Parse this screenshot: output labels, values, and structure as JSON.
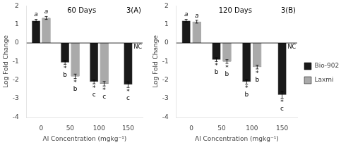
{
  "chart_data": [
    {
      "type": "bar",
      "title": "60 Days",
      "subtitle": "3(A)",
      "x_label": "Al Concentration (mgkg⁻¹)",
      "y_label": "Log Fold Change",
      "categories": [
        "0",
        "50",
        "100",
        "150"
      ],
      "series": [
        {
          "name": "Bio-902",
          "color": "#1a1a1a",
          "values": [
            1.2,
            -1.05,
            -2.1,
            -2.25
          ],
          "errors": [
            0.07,
            0.1,
            0.1,
            0.15
          ]
        },
        {
          "name": "Laxmi",
          "color": "#aaaaaa",
          "values": [
            1.35,
            -1.8,
            -2.2,
            null
          ],
          "errors": [
            0.08,
            0.12,
            0.12,
            null
          ]
        }
      ],
      "annotations": [
        {
          "text": "a",
          "series": "Bio-902",
          "category": "0",
          "position": "above"
        },
        {
          "text": "a",
          "series": "Laxmi",
          "category": "0",
          "position": "above"
        },
        {
          "text": "*\nb",
          "series": "Bio-902",
          "category": "50",
          "position": "below"
        },
        {
          "text": "*\nc",
          "series": "Bio-902",
          "category": "100",
          "position": "below"
        },
        {
          "text": "*\nc",
          "series": "Bio-902",
          "category": "150",
          "position": "below"
        },
        {
          "text": "*\nb",
          "series": "Laxmi",
          "category": "50",
          "position": "below"
        },
        {
          "text": "*\nc",
          "series": "Laxmi",
          "category": "100",
          "position": "below"
        },
        {
          "text": "NC",
          "category": "150"
        }
      ],
      "ylim": [
        -4,
        2
      ],
      "yticks": [
        -4,
        -3,
        -2,
        -1,
        0,
        1,
        2
      ],
      "grid": false
    },
    {
      "type": "bar",
      "title": "120 Days",
      "subtitle": "3(B)",
      "x_label": "Al Concentration (mgkg⁻¹)",
      "y_label": "Log Fold Change",
      "categories": [
        "0",
        "50",
        "100",
        "150"
      ],
      "series": [
        {
          "name": "Bio-902",
          "color": "#1a1a1a",
          "values": [
            1.2,
            -0.9,
            -2.1,
            -2.8
          ],
          "errors": [
            0.07,
            0.1,
            0.12,
            0.18
          ]
        },
        {
          "name": "Laxmi",
          "color": "#aaaaaa",
          "values": [
            1.15,
            -1.0,
            -1.3,
            null
          ],
          "errors": [
            0.08,
            0.1,
            0.1,
            null
          ]
        }
      ],
      "annotations": [
        {
          "text": "a",
          "series": "Bio-902",
          "category": "0",
          "position": "above"
        },
        {
          "text": "a",
          "series": "Laxmi",
          "category": "0",
          "position": "above"
        },
        {
          "text": "*\nb",
          "series": "Bio-902",
          "category": "50",
          "position": "below"
        },
        {
          "text": "*\nb",
          "series": "Bio-902",
          "category": "100",
          "position": "below"
        },
        {
          "text": "*\nc",
          "series": "Bio-902",
          "category": "150",
          "position": "below"
        },
        {
          "text": "*\nb",
          "series": "Laxmi",
          "category": "50",
          "position": "below"
        },
        {
          "text": "*\nb",
          "series": "Laxmi",
          "category": "100",
          "position": "below"
        },
        {
          "text": "NC",
          "category": "150"
        }
      ],
      "ylim": [
        -4,
        2
      ],
      "yticks": [
        -4,
        -3,
        -2,
        -1,
        0,
        1,
        2
      ],
      "grid": false,
      "legend": "right"
    }
  ]
}
